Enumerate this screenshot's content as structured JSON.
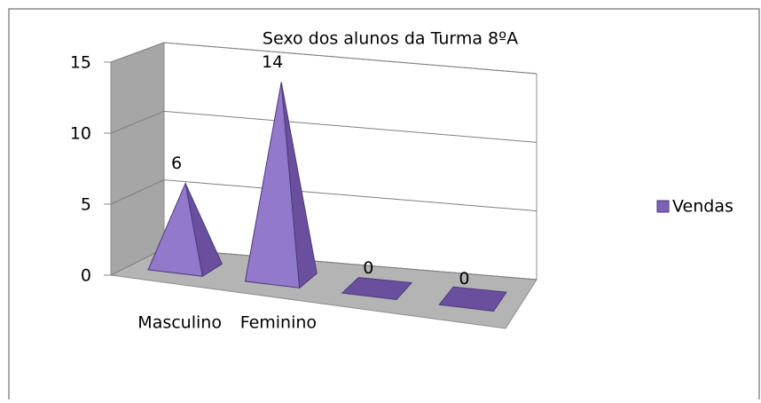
{
  "chart_data": {
    "type": "pyramid3d",
    "title": "Sexo dos alunos da Turma 8ºA",
    "categories": [
      "Masculino",
      "Feminino",
      null,
      null
    ],
    "series": [
      {
        "name": "Vendas",
        "color": "#7e62b8",
        "values": [
          6,
          14,
          0,
          0
        ]
      }
    ],
    "ylim": [
      0,
      15
    ],
    "yticks": [
      0,
      5,
      10,
      15
    ],
    "grid": true,
    "legend": "right"
  }
}
